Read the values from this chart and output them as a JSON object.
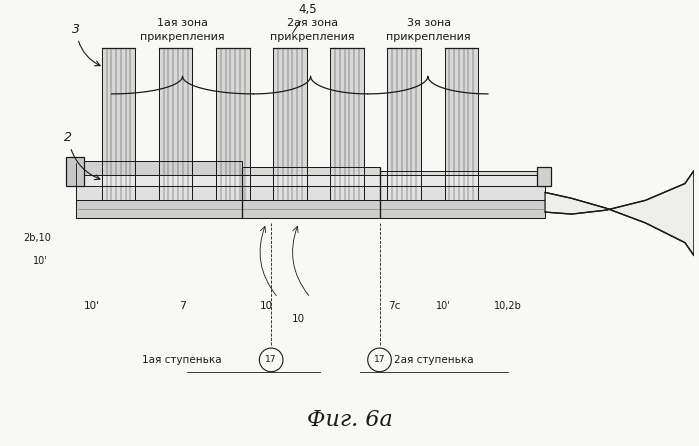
{
  "bg_color": "#f8f8f4",
  "line_color": "#1a1a1a",
  "title": "Фиг. 6а",
  "title_fontsize": 16,
  "zone1_label1": "1ая зона",
  "zone1_label2": "прикрепления",
  "zone2_label1": "2ая зона",
  "zone2_label2": "прикрепления",
  "zone3_label1": "3я зона",
  "zone3_label2": "прикрепления",
  "step1_label": "1ая ступенька",
  "step2_label": "2ая ступенька"
}
